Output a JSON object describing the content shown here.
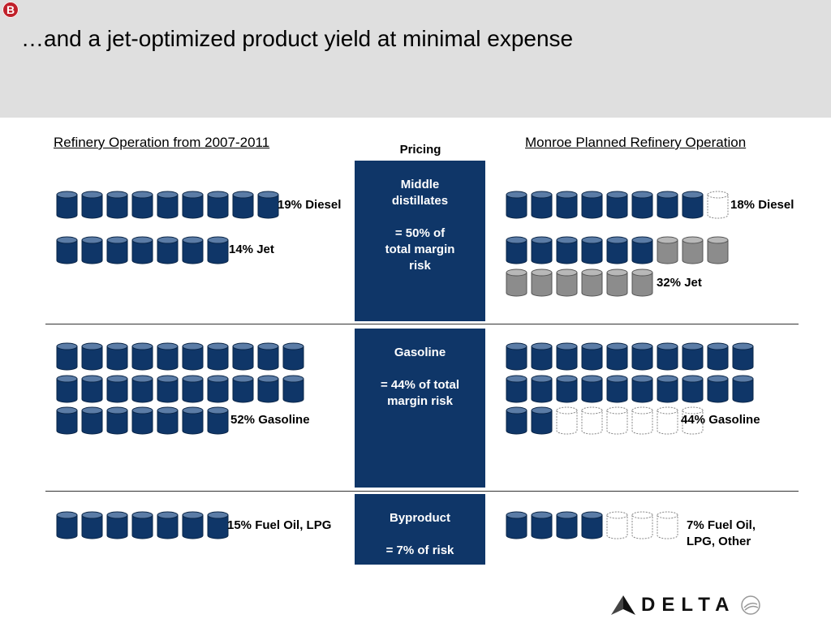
{
  "header": {
    "badge": "B",
    "title": "…and a jet-optimized product yield at minimal expense"
  },
  "left_title": "Refinery Operation from 2007-2011",
  "right_title": "Monroe Planned Refinery Operation",
  "pricing": {
    "label": "Pricing",
    "boxes": [
      {
        "text": "Middle\ndistillates\n\n= 50% of\ntotal margin\nrisk"
      },
      {
        "text": "Gasoline\n\n= 44% of total\nmargin risk"
      },
      {
        "text": "Byproduct\n\n= 7% of risk"
      }
    ]
  },
  "left": {
    "diesel": {
      "label": "19% Diesel",
      "barrels": 9
    },
    "jet": {
      "label": "14% Jet",
      "barrels": 7
    },
    "gasoline": {
      "label": "52% Gasoline",
      "barrels": 27
    },
    "fuel_oil": {
      "label": "15% Fuel Oil, LPG",
      "barrels": 7
    }
  },
  "right": {
    "diesel": {
      "label": "18% Diesel",
      "filled": 8,
      "empty": 1
    },
    "jet": {
      "label": "32% Jet",
      "filled_blue": 6,
      "filled_gray": 9
    },
    "gasoline": {
      "label": "44% Gasoline",
      "filled": 22,
      "empty": 6
    },
    "fuel_oil": {
      "label": "7% Fuel Oil,\nLPG, Other",
      "filled": 4,
      "empty": 3
    }
  },
  "colors": {
    "blue_barrel": "#0f3668",
    "blue_barrel_top": "#5b7ca6",
    "gray_barrel": "#8c8c8c",
    "gray_barrel_top": "#b8b8b8",
    "pricing_box": "#0f3668",
    "badge": "#c0202a"
  },
  "logo": {
    "word": "DELTA",
    "icon": "delta-widget-icon",
    "seal": "skyteam-seal"
  }
}
